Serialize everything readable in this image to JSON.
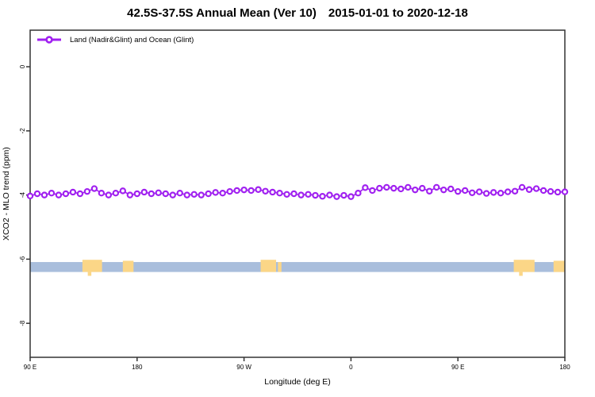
{
  "title": {
    "left": "42.5S-37.5S Annual Mean (Ver 10)",
    "right": "2015-01-01 to 2020-12-18"
  },
  "legend": {
    "label": "Land (Nadir&Glint) and Ocean (Glint)",
    "marker_color": "#A020F0"
  },
  "axes": {
    "x_label": "Longitude (deg E)",
    "y_label": "XCO2 - MLO trend (ppm)"
  },
  "colors": {
    "frame": "#333333",
    "series": "#A020F0",
    "ocean": "#A9BEDC",
    "land": "#FBD687"
  },
  "chart_data": {
    "type": "line",
    "title": "42.5S-37.5S Annual Mean (Ver 10)  2015-01-01 to 2020-12-18",
    "xlabel": "Longitude (deg E)",
    "ylabel": "XCO2 - MLO trend (ppm)",
    "xlim": [
      90,
      540
    ],
    "ylim": [
      -9.06,
      1.14
    ],
    "grid": false,
    "legend_position": "top-left-inside",
    "x_ticks": [
      {
        "deg": 90,
        "label": "90 E"
      },
      {
        "deg": 180,
        "label": "180"
      },
      {
        "deg": 270,
        "label": "90 W"
      },
      {
        "deg": 360,
        "label": "0"
      },
      {
        "deg": 450,
        "label": "90 E"
      },
      {
        "deg": 540,
        "label": "180"
      }
    ],
    "y_ticks": [
      {
        "value": 0,
        "label": "0"
      },
      {
        "value": -2,
        "label": "-2"
      },
      {
        "value": -4,
        "label": "-4"
      },
      {
        "value": -6,
        "label": "-6"
      },
      {
        "value": -8,
        "label": "-8"
      }
    ],
    "series": [
      {
        "name": "Land (Nadir&Glint) and Ocean (Glint)",
        "color": "#A020F0",
        "marker": "open-circle",
        "x_deg": [
          90,
          96,
          102,
          108,
          114,
          120,
          126,
          132,
          138,
          144,
          150,
          156,
          162,
          168,
          174,
          180,
          186,
          192,
          198,
          204,
          210,
          216,
          222,
          228,
          234,
          240,
          246,
          252,
          258,
          264,
          270,
          276,
          282,
          288,
          294,
          300,
          306,
          312,
          318,
          324,
          330,
          336,
          342,
          348,
          354,
          360,
          366,
          372,
          378,
          384,
          390,
          396,
          402,
          408,
          414,
          420,
          426,
          432,
          438,
          444,
          450,
          456,
          462,
          468,
          474,
          480,
          486,
          492,
          498,
          504,
          510,
          516,
          522,
          528,
          534,
          540
        ],
        "y_ppm": [
          -4.03,
          -3.96,
          -4.0,
          -3.94,
          -4.0,
          -3.96,
          -3.91,
          -3.96,
          -3.89,
          -3.8,
          -3.94,
          -4.0,
          -3.94,
          -3.87,
          -4.0,
          -3.96,
          -3.91,
          -3.96,
          -3.93,
          -3.96,
          -4.0,
          -3.94,
          -4.0,
          -3.98,
          -4.0,
          -3.96,
          -3.92,
          -3.94,
          -3.89,
          -3.86,
          -3.84,
          -3.86,
          -3.83,
          -3.88,
          -3.91,
          -3.94,
          -3.98,
          -3.96,
          -4.0,
          -3.98,
          -4.01,
          -4.04,
          -4.0,
          -4.05,
          -4.01,
          -4.05,
          -3.94,
          -3.77,
          -3.86,
          -3.79,
          -3.76,
          -3.79,
          -3.81,
          -3.76,
          -3.84,
          -3.79,
          -3.88,
          -3.76,
          -3.84,
          -3.81,
          -3.89,
          -3.86,
          -3.93,
          -3.9,
          -3.95,
          -3.92,
          -3.94,
          -3.9,
          -3.88,
          -3.76,
          -3.83,
          -3.8,
          -3.86,
          -3.89,
          -3.91,
          -3.9
        ]
      }
    ],
    "map_strip": {
      "ocean_color": "#A9BEDC",
      "land_color": "#FBD687",
      "top_ppm": -6.09,
      "bottom_ppm": -6.4,
      "land_patches_deg_e": [
        {
          "from": 134,
          "to": 150.5,
          "top_ppm": -6.02
        },
        {
          "from": 138.5,
          "to": 141.5,
          "top_ppm": -6.4,
          "bottom_ppm": -6.52
        },
        {
          "from": 168,
          "to": 177,
          "top_ppm": -6.05
        },
        {
          "from": 284,
          "to": 297,
          "top_ppm": -6.02
        },
        {
          "from": 298.5,
          "to": 301.5
        },
        {
          "from": 497,
          "to": 514.5,
          "top_ppm": -6.02
        },
        {
          "from": 501.5,
          "to": 504.5,
          "top_ppm": -6.4,
          "bottom_ppm": -6.52
        },
        {
          "from": 530.5,
          "to": 540,
          "top_ppm": -6.05
        }
      ]
    }
  }
}
